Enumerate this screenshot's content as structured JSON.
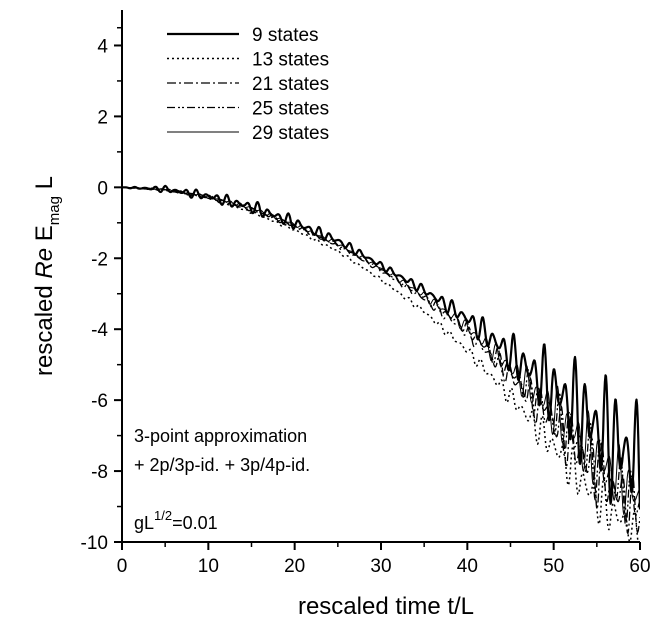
{
  "chart_data": {
    "type": "line",
    "xlabel": "rescaled time t/L",
    "ylabel": {
      "prefix": "rescaled ",
      "italic": "Re",
      "symbol": " E",
      "subscript": "mag",
      "suffix": " L"
    },
    "xlim": [
      0,
      60
    ],
    "ylim": [
      -10,
      5
    ],
    "x_ticks": [
      0,
      10,
      20,
      30,
      40,
      50,
      60
    ],
    "y_ticks": [
      -10,
      -8,
      -6,
      -4,
      -2,
      0,
      2,
      4
    ],
    "grid": false,
    "legend_position": "top-left",
    "annotations": [
      "3-point approximation",
      "+ 2p/3p-id. + 3p/4p-id."
    ],
    "param_label": {
      "base": "gL",
      "sup": "1/2",
      "rest": "=0.01"
    },
    "series": [
      {
        "name": "9 states",
        "style": "solid-thick",
        "x": [
          0,
          5,
          10,
          15,
          20,
          25,
          30,
          35,
          40,
          45,
          50,
          55,
          60
        ],
        "y": [
          0,
          -0.05,
          -0.25,
          -0.55,
          -1.0,
          -1.5,
          -2.2,
          -2.9,
          -3.7,
          -4.7,
          -5.7,
          -6.8,
          -7.8
        ],
        "oscillation": [
          0,
          0.1,
          0.15,
          0.2,
          0.2,
          0.15,
          0.1,
          0.15,
          0.3,
          0.6,
          1.2,
          1.8,
          2.0
        ]
      },
      {
        "name": "13 states",
        "style": "dotted",
        "x": [
          0,
          5,
          10,
          15,
          20,
          25,
          30,
          35,
          40,
          45,
          50,
          55,
          60
        ],
        "y": [
          0,
          -0.08,
          -0.3,
          -0.7,
          -1.2,
          -1.8,
          -2.6,
          -3.5,
          -4.6,
          -5.9,
          -7.3,
          -8.8,
          -9.8
        ],
        "oscillation": [
          0,
          0.02,
          0.03,
          0.04,
          0.05,
          0.05,
          0.05,
          0.1,
          0.15,
          0.3,
          0.6,
          0.8,
          0.5
        ]
      },
      {
        "name": "21 states",
        "style": "dash-dot",
        "x": [
          0,
          5,
          10,
          15,
          20,
          25,
          30,
          35,
          40,
          45,
          50,
          55,
          60
        ],
        "y": [
          0,
          -0.06,
          -0.28,
          -0.62,
          -1.1,
          -1.65,
          -2.35,
          -3.15,
          -4.1,
          -5.3,
          -6.6,
          -8.0,
          -9.2
        ],
        "oscillation": [
          0,
          0.03,
          0.05,
          0.06,
          0.06,
          0.06,
          0.06,
          0.12,
          0.2,
          0.4,
          0.8,
          1.1,
          0.9
        ]
      },
      {
        "name": "25 states",
        "style": "dash-dot-dot",
        "x": [
          0,
          5,
          10,
          15,
          20,
          25,
          30,
          35,
          40,
          45,
          50,
          55,
          60
        ],
        "y": [
          0,
          -0.06,
          -0.27,
          -0.6,
          -1.08,
          -1.62,
          -2.3,
          -3.1,
          -4.0,
          -5.2,
          -6.4,
          -7.8,
          -9.0
        ],
        "oscillation": [
          0,
          0.03,
          0.05,
          0.06,
          0.06,
          0.06,
          0.06,
          0.12,
          0.2,
          0.4,
          0.8,
          1.1,
          0.9
        ]
      },
      {
        "name": "29 states",
        "style": "solid-thin",
        "x": [
          0,
          5,
          10,
          15,
          20,
          25,
          30,
          35,
          40,
          45,
          50,
          55,
          60
        ],
        "y": [
          0,
          -0.06,
          -0.26,
          -0.58,
          -1.05,
          -1.6,
          -2.28,
          -3.05,
          -3.95,
          -5.1,
          -6.3,
          -7.6,
          -8.8
        ],
        "oscillation": [
          0,
          0.03,
          0.05,
          0.06,
          0.06,
          0.06,
          0.06,
          0.12,
          0.2,
          0.4,
          0.8,
          1.1,
          0.9
        ]
      }
    ]
  }
}
